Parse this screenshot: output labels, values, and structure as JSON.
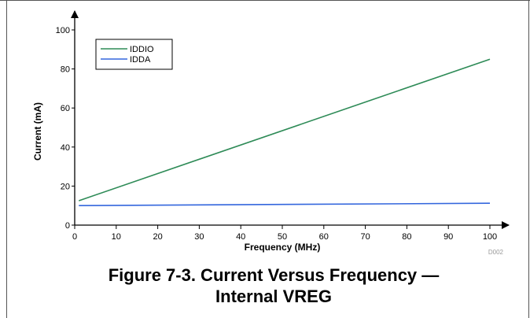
{
  "chart_data": {
    "type": "line",
    "xlabel": "Frequency (MHz)",
    "ylabel": "Current (mA)",
    "xlim": [
      0,
      100
    ],
    "ylim": [
      0,
      100
    ],
    "xticks": [
      0,
      10,
      20,
      30,
      40,
      50,
      60,
      70,
      80,
      90,
      100
    ],
    "yticks": [
      0,
      20,
      40,
      60,
      80,
      100
    ],
    "grid": false,
    "legend_position": "top-left",
    "series": [
      {
        "name": "IDDIO",
        "color": "#2e8b57",
        "x": [
          1,
          100
        ],
        "y": [
          12.5,
          85
        ]
      },
      {
        "name": "IDDA",
        "color": "#3366dd",
        "x": [
          1,
          100
        ],
        "y": [
          10,
          11.2
        ]
      }
    ],
    "figure_code": "D002"
  },
  "caption": "Figure 7-3. Current Versus Frequency — Internal VREG"
}
